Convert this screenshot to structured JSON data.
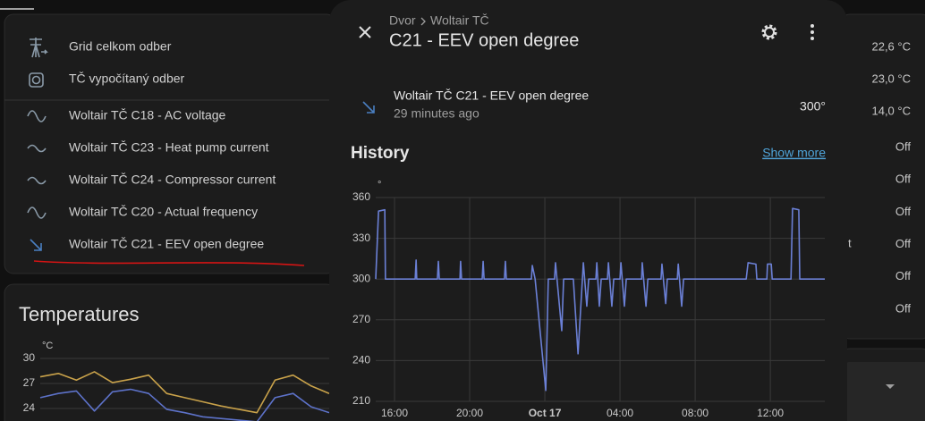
{
  "sidebar_card": {
    "items": [
      "Grid celkom odber",
      "TČ vypočítaný odber",
      "Woltair TČ C18 - AC voltage",
      "Woltair TČ C23 - Heat pump current",
      "Woltair TČ C24 - Compressor current",
      "Woltair TČ C20 - Actual frequency",
      "Woltair TČ C21 - EEV open degree"
    ]
  },
  "right_column": {
    "values": [
      "22,6 °C",
      "23,0 °C",
      "14,0 °C",
      "Off",
      "Off",
      "Off",
      "Off",
      "Off",
      "Off"
    ],
    "partial_text": "t"
  },
  "dialog": {
    "breadcrumb": [
      "Dvor",
      "Woltair TČ"
    ],
    "title": "C21 - EEV open degree",
    "entity": {
      "name": "Woltair TČ C21 - EEV open degree",
      "last_changed": "29 minutes ago",
      "state": "300°"
    },
    "history_heading": "History",
    "show_more": "Show more"
  },
  "chart_data": [
    {
      "type": "line",
      "unit": "°",
      "color": "#6b80d6",
      "grid": true,
      "x": [
        "Oct 16 15:00",
        "Oct 16 15:09",
        "Oct 16 15:29",
        "Oct 16 15:31",
        "Oct 16 17:06",
        "Oct 16 17:09",
        "Oct 16 17:11",
        "Oct 16 18:17",
        "Oct 16 18:20",
        "Oct 16 18:23",
        "Oct 16 19:29",
        "Oct 16 19:31",
        "Oct 16 19:34",
        "Oct 16 20:40",
        "Oct 16 20:43",
        "Oct 16 20:46",
        "Oct 16 21:51",
        "Oct 16 21:54",
        "Oct 16 21:57",
        "Oct 16 23:17",
        "Oct 16 23:20",
        "Oct 16 23:29",
        "Oct 17 00:03",
        "Oct 17 00:11",
        "Oct 17 00:31",
        "Oct 17 00:34",
        "Oct 17 00:54",
        "Oct 17 01:00",
        "Oct 17 01:31",
        "Oct 17 01:46",
        "Oct 17 02:03",
        "Oct 17 02:14",
        "Oct 17 02:20",
        "Oct 17 02:43",
        "Oct 17 02:46",
        "Oct 17 02:54",
        "Oct 17 03:00",
        "Oct 17 03:20",
        "Oct 17 03:23",
        "Oct 17 03:34",
        "Oct 17 03:40",
        "Oct 17 04:00",
        "Oct 17 04:03",
        "Oct 17 04:14",
        "Oct 17 04:20",
        "Oct 17 05:09",
        "Oct 17 05:11",
        "Oct 17 05:23",
        "Oct 17 05:29",
        "Oct 17 06:11",
        "Oct 17 06:14",
        "Oct 17 06:26",
        "Oct 17 06:31",
        "Oct 17 07:03",
        "Oct 17 07:06",
        "Oct 17 07:17",
        "Oct 17 07:23",
        "Oct 17 10:43",
        "Oct 17 10:49",
        "Oct 17 11:14",
        "Oct 17 11:17",
        "Oct 17 11:49",
        "Oct 17 11:51",
        "Oct 17 12:03",
        "Oct 17 12:06",
        "Oct 17 13:06",
        "Oct 17 13:11",
        "Oct 17 13:31",
        "Oct 17 13:34",
        "Oct 17 14:54"
      ],
      "values": [
        300,
        350,
        351,
        300,
        300,
        314,
        300,
        300,
        313,
        300,
        300,
        313,
        300,
        300,
        313,
        300,
        300,
        313,
        300,
        300,
        310,
        300,
        218,
        300,
        300,
        312,
        262,
        300,
        300,
        245,
        312,
        280,
        300,
        300,
        312,
        280,
        300,
        300,
        312,
        280,
        300,
        300,
        312,
        280,
        300,
        300,
        312,
        280,
        300,
        300,
        311,
        282,
        300,
        300,
        311,
        280,
        300,
        300,
        312,
        311,
        300,
        300,
        311,
        311,
        300,
        300,
        352,
        351,
        300,
        300
      ],
      "xlim": [
        "Oct 16 15:00",
        "Oct 17 14:54"
      ],
      "xticks": [
        {
          "value": "Oct 16 16:00",
          "label": "16:00"
        },
        {
          "value": "Oct 16 20:00",
          "label": "20:00"
        },
        {
          "value": "Oct 17 00:00",
          "label": "Oct 17"
        },
        {
          "value": "Oct 17 04:00",
          "label": "04:00"
        },
        {
          "value": "Oct 17 08:00",
          "label": "08:00"
        },
        {
          "value": "Oct 17 12:00",
          "label": "12:00"
        }
      ],
      "ylim": [
        210,
        360
      ],
      "yticks": [
        210,
        240,
        270,
        300,
        330,
        360
      ]
    },
    {
      "type": "line",
      "title": "Temperatures",
      "unit": "°C",
      "grid": true,
      "categories": [
        null,
        null,
        null,
        null,
        null,
        null,
        null,
        null,
        null,
        null,
        null,
        null,
        null,
        null,
        null,
        null,
        null
      ],
      "series": [
        {
          "color": "#c9a24a",
          "values": [
            27.8,
            28.2,
            27.4,
            28.4,
            27.1,
            27.5,
            28.0,
            25.8,
            25.3,
            24.8,
            24.3,
            23.9,
            23.5,
            27.4,
            28.0,
            26.7,
            25.8
          ]
        },
        {
          "color": "#5d72c9",
          "values": [
            25.3,
            25.8,
            26.1,
            23.7,
            26.0,
            26.3,
            25.8,
            23.9,
            23.5,
            23.0,
            22.8,
            22.6,
            22.4,
            25.3,
            25.8,
            24.2,
            23.5
          ]
        }
      ],
      "ylim": [
        21,
        30
      ],
      "yticks": [
        24,
        27,
        30
      ]
    }
  ]
}
